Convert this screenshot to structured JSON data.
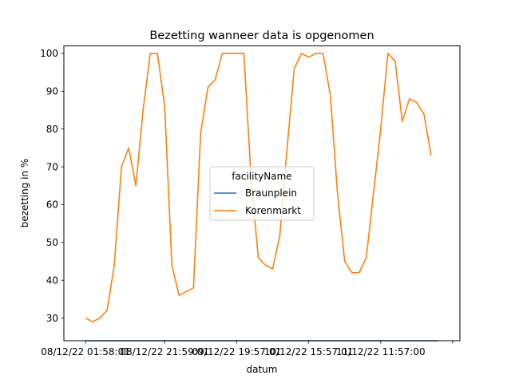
{
  "chart_data": {
    "type": "line",
    "title": "Bezetting wanneer data is opgenomen",
    "xlabel": "datum",
    "ylabel": "bezetting in %",
    "x_tick_labels": [
      "08/12/22 01:58:01",
      "08/12/22 21:59:01",
      "09/12/22 19:57:01",
      "10/12/22 15:57:01",
      "11/12/22 11:57:00"
    ],
    "x_tick_positions": [
      0,
      11,
      21,
      31,
      41
    ],
    "x_tick_extra": [
      51
    ],
    "xlim": [
      -3,
      52
    ],
    "ylim": [
      24,
      102
    ],
    "y_ticks": [
      30,
      40,
      50,
      60,
      70,
      80,
      90,
      100
    ],
    "legend": {
      "title": "facilityName",
      "placement": "center"
    },
    "grid": false,
    "series": [
      {
        "name": "Braunplein",
        "color": "#1f77b4",
        "values": [
          24,
          24,
          24,
          24,
          24,
          24,
          24,
          24,
          24,
          24,
          24,
          24,
          24,
          24,
          24,
          24,
          24,
          24,
          24,
          24,
          24,
          24,
          24,
          24,
          24,
          24,
          24,
          24,
          24,
          24,
          24,
          24,
          24,
          24,
          24,
          24,
          24,
          24,
          24,
          24,
          24,
          24,
          24,
          24,
          24,
          24,
          24,
          24,
          24,
          24
        ]
      },
      {
        "name": "Korenmarkt",
        "color": "#ff7f0e",
        "values": [
          30,
          29,
          30,
          32,
          44,
          70,
          75,
          65,
          85,
          100,
          100,
          86,
          44,
          36,
          37,
          38,
          79,
          91,
          93,
          100,
          100,
          100,
          100,
          67,
          46,
          44,
          43,
          52,
          75,
          96,
          100,
          99,
          100,
          100,
          89,
          63,
          45,
          42,
          42,
          46,
          63,
          80,
          100,
          98,
          82,
          88,
          87,
          84,
          73
        ]
      }
    ]
  }
}
